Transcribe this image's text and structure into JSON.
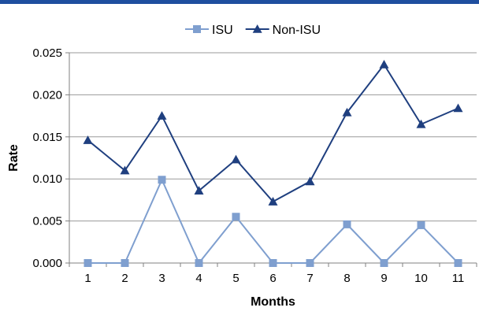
{
  "chart_data": {
    "type": "line",
    "title": "",
    "xlabel": "Months",
    "ylabel": "Rate",
    "x": [
      1,
      2,
      3,
      4,
      5,
      6,
      7,
      8,
      9,
      10,
      11
    ],
    "ylim": [
      0,
      0.025
    ],
    "yticks": [
      "0.000",
      "0.005",
      "0.010",
      "0.015",
      "0.020",
      "0.025"
    ],
    "grid": true,
    "legend": "top-center",
    "series": [
      {
        "name": "ISU",
        "color": "#7f9fcf",
        "marker": "square",
        "values": [
          0.0,
          0.0,
          0.0099,
          0.0,
          0.0055,
          0.0,
          0.0,
          0.0046,
          0.0,
          0.0045,
          0.0
        ]
      },
      {
        "name": "Non-ISU",
        "color": "#1f3f7f",
        "marker": "triangle",
        "values": [
          0.0146,
          0.011,
          0.0175,
          0.0086,
          0.0123,
          0.0073,
          0.0097,
          0.0179,
          0.0236,
          0.0165,
          0.0184
        ]
      }
    ]
  },
  "colors": {
    "top_rule": "#1f4f9f",
    "gridline": "#9a9a9a",
    "axis": "#808080"
  }
}
